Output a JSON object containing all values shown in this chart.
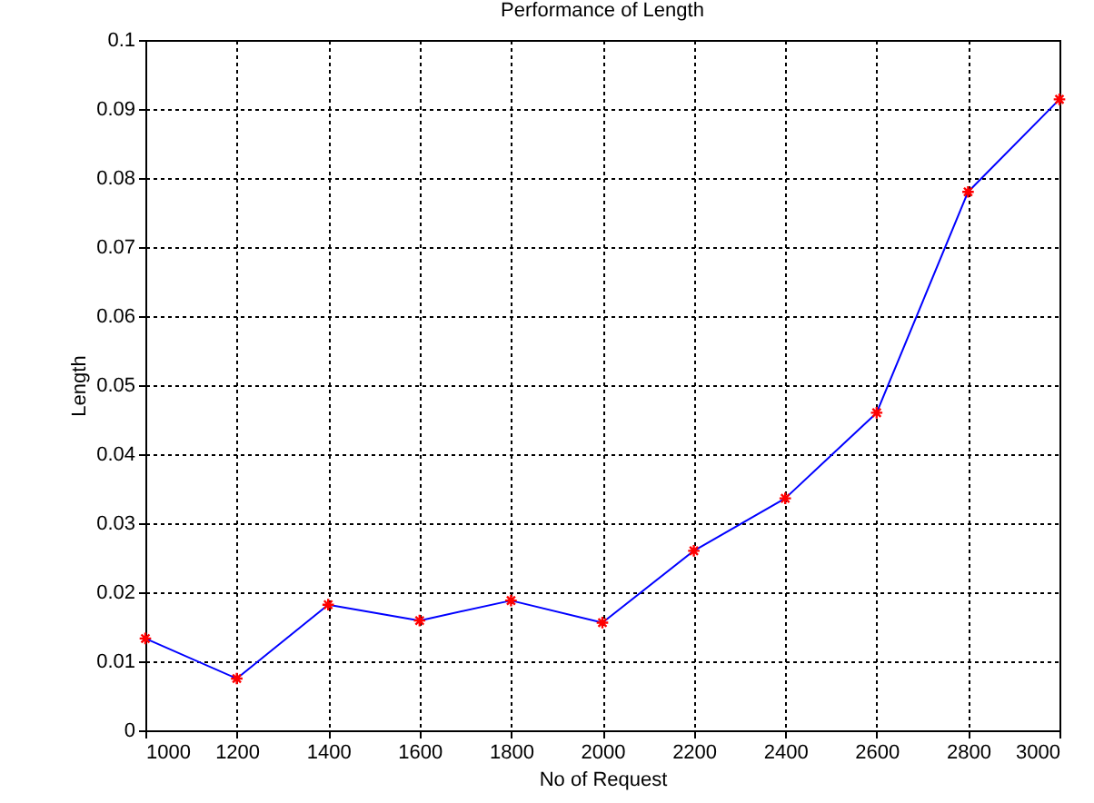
{
  "chart_data": {
    "type": "line",
    "title": "Performance of Length",
    "xlabel": "No of Request",
    "ylabel": "Length",
    "x": [
      1000,
      1200,
      1400,
      1600,
      1800,
      2000,
      2200,
      2400,
      2600,
      2800,
      3000
    ],
    "series": [
      {
        "color": "#0000ff",
        "values": [
          0.0133,
          0.0075,
          0.0182,
          0.0159,
          0.0188,
          0.0156,
          0.026,
          0.0336,
          0.046,
          0.078,
          0.0914
        ]
      }
    ],
    "xlim": [
      1000,
      3000
    ],
    "xticks": [
      1000,
      1200,
      1400,
      1600,
      1800,
      2000,
      2200,
      2400,
      2600,
      2800,
      3000
    ],
    "ylim": [
      0,
      0.1
    ],
    "yticks": [
      0,
      0.01,
      0.02,
      0.03,
      0.04,
      0.05,
      0.06,
      0.07,
      0.08,
      0.09,
      0.1
    ],
    "grid": true,
    "marker": "cross",
    "legend": false
  }
}
